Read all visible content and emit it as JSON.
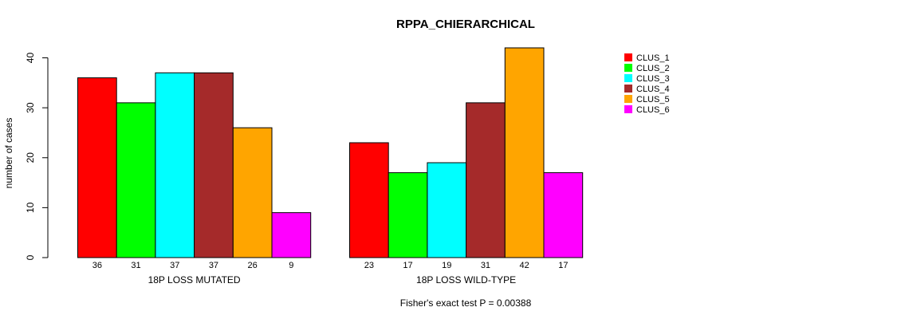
{
  "chart_data": {
    "type": "bar",
    "title": "RPPA_CHIERARCHICAL",
    "xlabel": "",
    "ylabel": "number of cases",
    "ylim": [
      0,
      42
    ],
    "yticks": [
      0,
      10,
      20,
      30,
      40
    ],
    "groups": [
      "18P LOSS MUTATED",
      "18P LOSS WILD-TYPE"
    ],
    "series": [
      {
        "name": "CLUS_1",
        "color": "#ff0000",
        "values": [
          36,
          23
        ]
      },
      {
        "name": "CLUS_2",
        "color": "#00ff00",
        "values": [
          31,
          17
        ]
      },
      {
        "name": "CLUS_3",
        "color": "#00ffff",
        "values": [
          37,
          19
        ]
      },
      {
        "name": "CLUS_4",
        "color": "#a52a2a",
        "values": [
          37,
          31
        ]
      },
      {
        "name": "CLUS_5",
        "color": "#ffa500",
        "values": [
          26,
          42
        ]
      },
      {
        "name": "CLUS_6",
        "color": "#ff00ff",
        "values": [
          9,
          17
        ]
      }
    ],
    "legend_position": "top-right",
    "footnote": "Fisher's exact test P = 0.00388"
  }
}
